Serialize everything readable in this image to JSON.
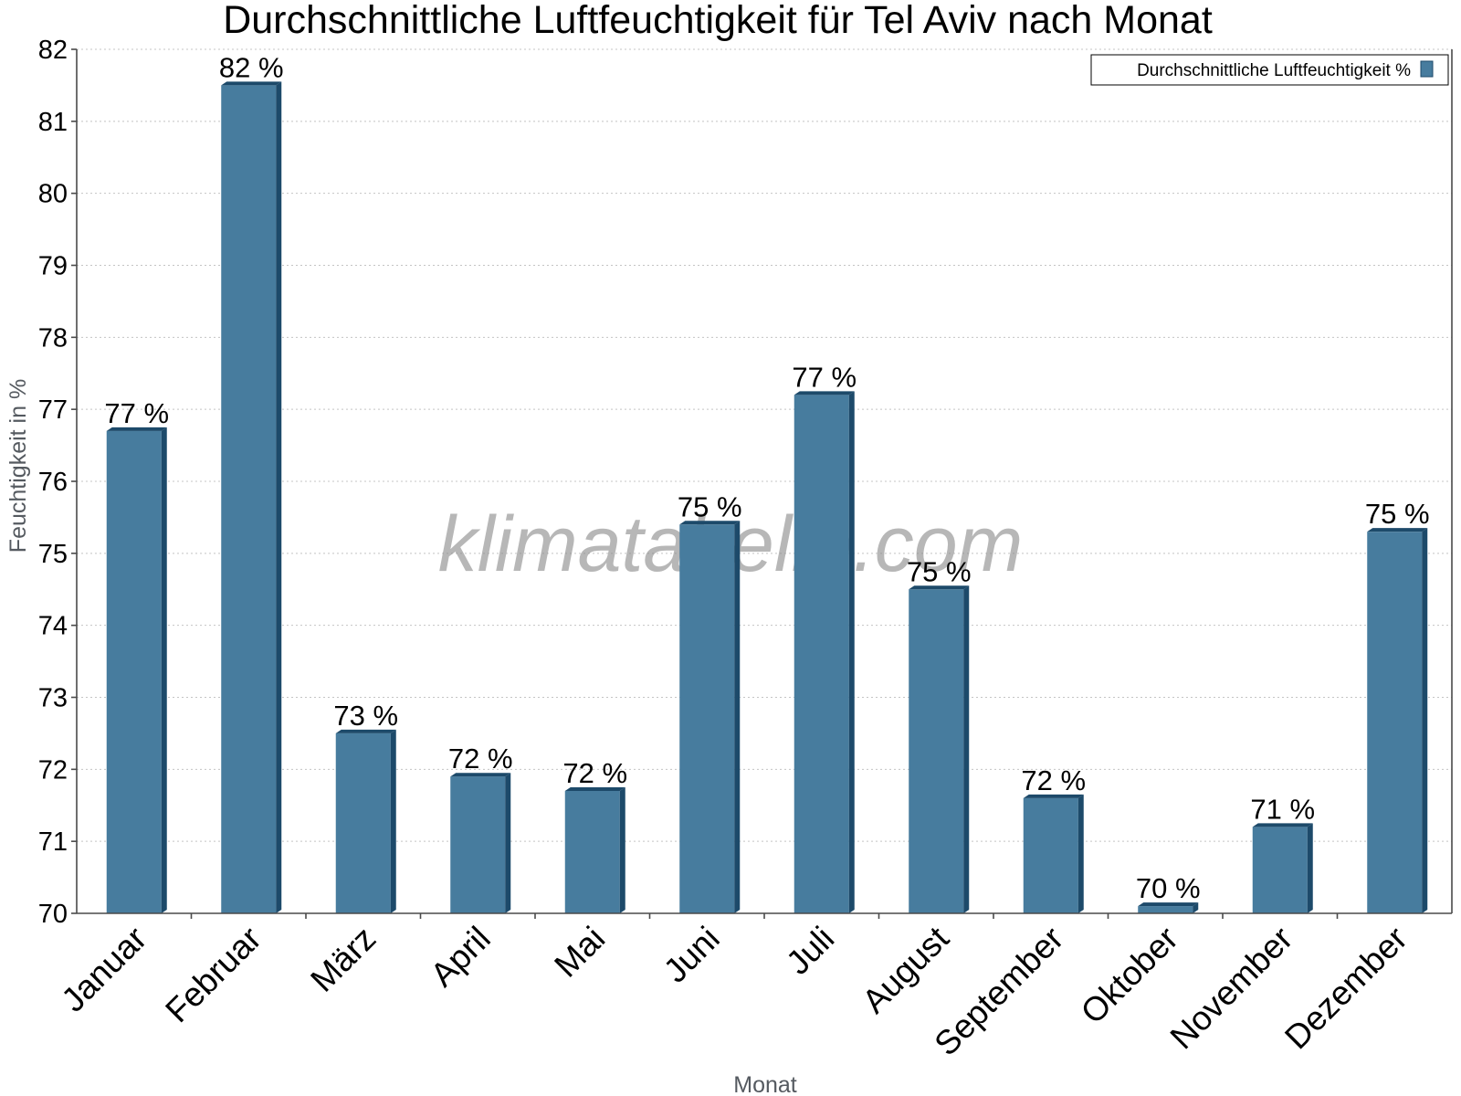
{
  "chart_data": {
    "type": "bar",
    "title": "Durchschnittliche Luftfeuchtigkeit für Tel Aviv nach Monat",
    "xlabel": "Monat",
    "ylabel": "Feuchtigkeit in %",
    "ylim": [
      70,
      82
    ],
    "yticks": [
      70,
      71,
      72,
      73,
      74,
      75,
      76,
      77,
      78,
      79,
      80,
      81,
      82
    ],
    "grid": true,
    "legend_position": "top-right",
    "categories": [
      "Januar",
      "Februar",
      "März",
      "April",
      "Mai",
      "Juni",
      "Juli",
      "August",
      "September",
      "Oktober",
      "November",
      "Dezember"
    ],
    "series": [
      {
        "name": "Durchschnittliche Luftfeuchtigkeit %",
        "color": "#477c9e",
        "values": [
          76.7,
          81.5,
          72.5,
          71.9,
          71.7,
          75.4,
          77.2,
          74.5,
          71.6,
          70.1,
          71.2,
          75.3
        ],
        "labels": [
          "77 %",
          "82 %",
          "73 %",
          "72 %",
          "72 %",
          "75 %",
          "77 %",
          "75 %",
          "72 %",
          "70 %",
          "71 %",
          "75 %"
        ]
      }
    ],
    "watermark": "klimatabelle.com"
  }
}
